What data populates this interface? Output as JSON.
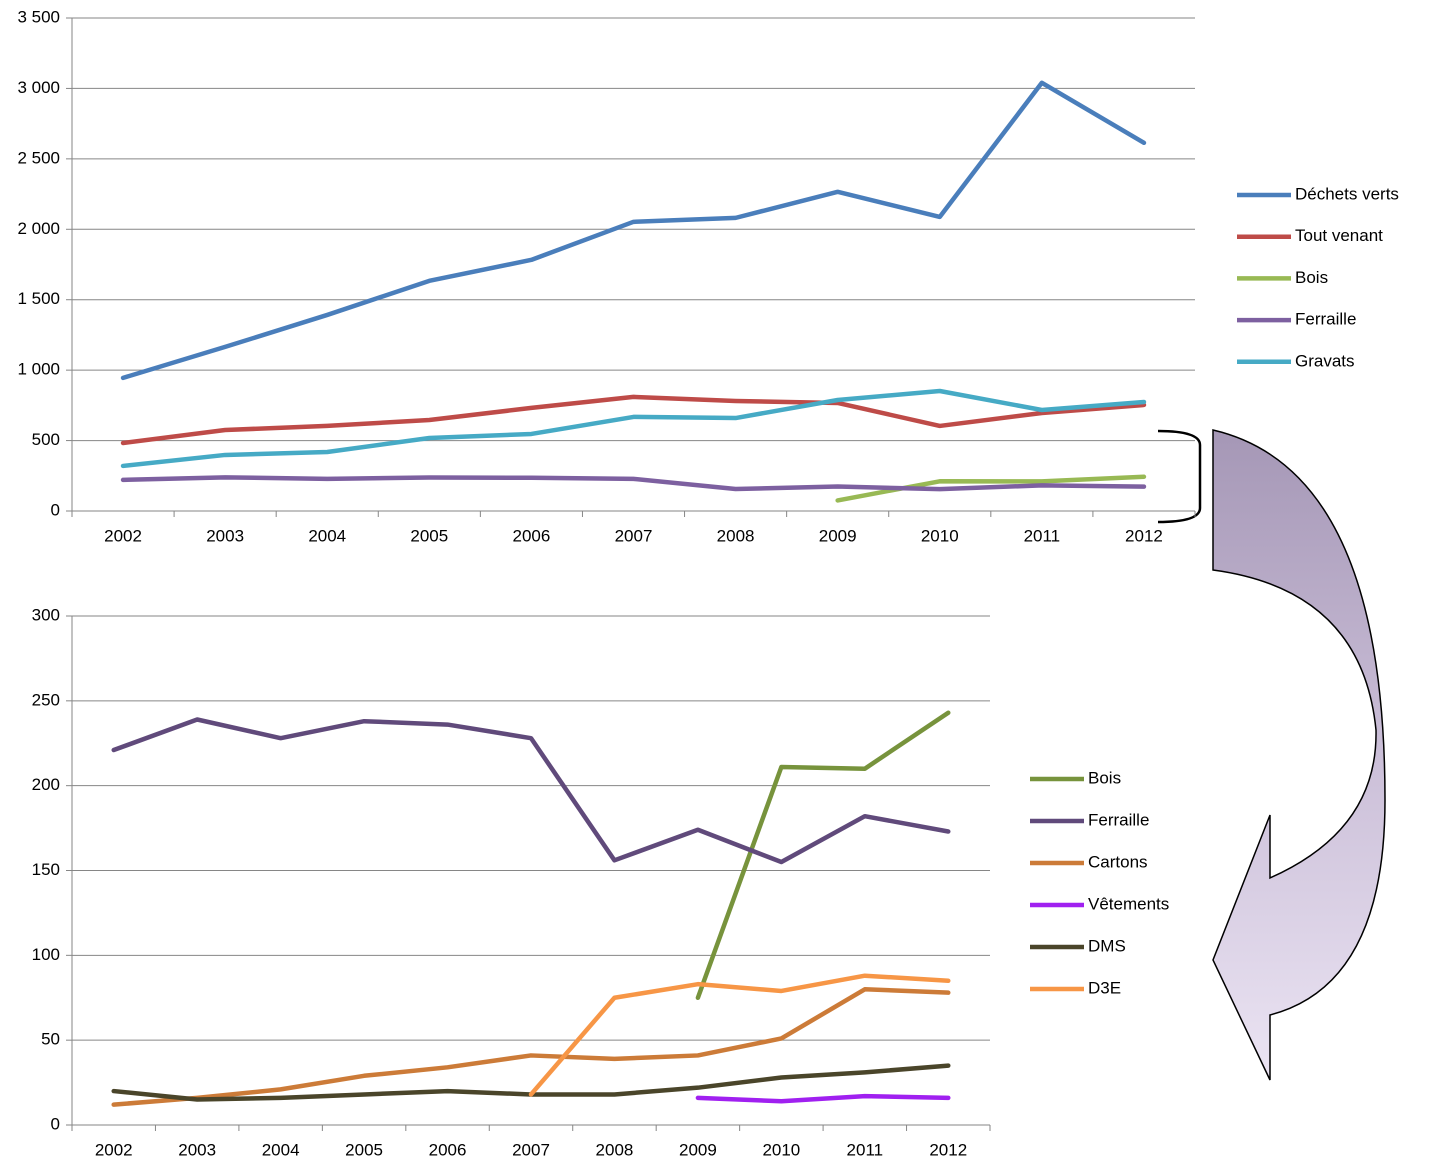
{
  "chart_data": [
    {
      "type": "line",
      "categories": [
        "2002",
        "2003",
        "2004",
        "2005",
        "2006",
        "2007",
        "2008",
        "2009",
        "2010",
        "2011",
        "2012"
      ],
      "series": [
        {
          "name": "Déchets verts",
          "color": "#4a7ebb",
          "values": [
            945,
            1165,
            1392,
            1634,
            1783,
            2053,
            2081,
            2266,
            2088,
            3040,
            2614
          ]
        },
        {
          "name": "Tout venant",
          "color": "#be4b48",
          "values": [
            483,
            575,
            604,
            646,
            732,
            810,
            781,
            767,
            604,
            696,
            753
          ]
        },
        {
          "name": "Bois",
          "color": "#98b954",
          "values": [
            null,
            null,
            null,
            null,
            null,
            null,
            null,
            75,
            211,
            210,
            243
          ]
        },
        {
          "name": "Ferraille",
          "color": "#7d60a0",
          "values": [
            221,
            239,
            228,
            238,
            236,
            228,
            156,
            174,
            155,
            182,
            173
          ]
        },
        {
          "name": "Gravats",
          "color": "#46aac5",
          "values": [
            320,
            398,
            419,
            518,
            547,
            668,
            660,
            788,
            852,
            717,
            774
          ]
        }
      ],
      "ylim": [
        0,
        3500
      ],
      "yticks": [
        0,
        500,
        {
          "value": 1000,
          "label": "1 000"
        },
        {
          "value": 1500,
          "label": "1 500"
        },
        {
          "value": 2000,
          "label": "2 000"
        },
        {
          "value": 2500,
          "label": "2 500"
        },
        {
          "value": 3000,
          "label": "3 000"
        },
        {
          "value": 3500,
          "label": "3 500"
        }
      ],
      "grid": true
    },
    {
      "type": "line",
      "categories": [
        "2002",
        "2003",
        "2004",
        "2005",
        "2006",
        "2007",
        "2008",
        "2009",
        "2010",
        "2011",
        "2012"
      ],
      "series": [
        {
          "name": "Bois",
          "color": "#77933c",
          "values": [
            null,
            null,
            null,
            null,
            null,
            null,
            null,
            75,
            211,
            210,
            243
          ]
        },
        {
          "name": "Ferraille",
          "color": "#604a7b",
          "values": [
            221,
            239,
            228,
            238,
            236,
            228,
            156,
            174,
            155,
            182,
            173
          ]
        },
        {
          "name": "Cartons",
          "color": "#cc7b38",
          "values": [
            12,
            16,
            21,
            29,
            34,
            41,
            39,
            41,
            51,
            80,
            78
          ]
        },
        {
          "name": "Vêtements",
          "color": "#a020f0",
          "values": [
            null,
            null,
            null,
            null,
            null,
            null,
            null,
            16,
            14,
            17,
            16
          ]
        },
        {
          "name": "DMS",
          "color": "#4a452a",
          "values": [
            20,
            15,
            16,
            18,
            20,
            18,
            18,
            22,
            28,
            31,
            35
          ]
        },
        {
          "name": "D3E",
          "color": "#f79646",
          "values": [
            null,
            null,
            null,
            null,
            null,
            18,
            75,
            83,
            79,
            88,
            85
          ]
        }
      ],
      "ylim": [
        0,
        300
      ],
      "yticks": [
        0,
        50,
        100,
        150,
        200,
        250,
        300
      ],
      "grid": true
    }
  ]
}
